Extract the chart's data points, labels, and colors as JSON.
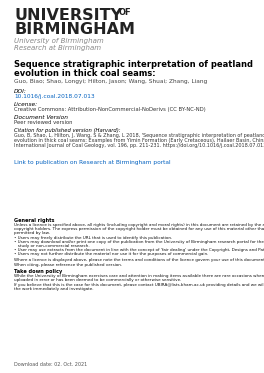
{
  "logo_university": "UNIVERSITY",
  "logo_of": "OF",
  "logo_birmingham": "BIRMINGHAM",
  "logo_sub1": "University of Birmingham",
  "logo_sub2": "Research at Birmingham",
  "title_line1": "Sequence stratigraphic interpretation of peatland",
  "title_line2": "evolution in thick coal seams:",
  "authors": "Guo, Biao; Shao, Longyi; Hilton, Jason; Wang, Shuai; Zhang, Liang",
  "doi_label": "DOI:",
  "doi_value": "10.1016/j.coal.2018.07.013",
  "license_label": "License:",
  "license_value": "Creative Commons: Attribution-NonCommercial-NoDerivs (CC BY-NC-ND)",
  "docver_label": "Document Version",
  "docver_value": "Peer reviewed version",
  "citation_label": "Citation for published version (Harvard):",
  "citation_line1": "Guo, B, Shao, L, Hilton, J, Wang, S & Zhang, L 2018, 'Sequence stratigraphic interpretation of peatland",
  "citation_line2": "evolution in thick coal seams: Examples from Yimin Formation (Early Cretaceous), Hailaer Basin, China',",
  "citation_line3": "International Journal of Coal Geology, vol. 196, pp. 211-231. https://doi.org/10.1016/j.coal.2018.07.013",
  "link_text": "Link to publication on Research at Birmingham portal",
  "gr_title": "General rights",
  "gr_line1": "Unless a licence is specified above, all rights (including copyright and moral rights) in this document are retained by the authors and/or the",
  "gr_line2": "copyright holders. The express permission of the copyright holder must be obtained for any use of this material other than for purposes",
  "gr_line3": "permitted by law.",
  "gr_b1": "• Users may freely distribute the URL that is used to identify this publication.",
  "gr_b2a": "• Users may download and/or print one copy of the publication from the University of Birmingham research portal for the purpose of private",
  "gr_b2b": "   study or non-commercial research.",
  "gr_b3": "• User may use extracts from the document in line with the concept of 'fair dealing' under the Copyright, Designs and Patents Act 1988 (?)",
  "gr_b4": "• Users may not further distribute the material nor use it for the purposes of commercial gain.",
  "where_lic": "Where a licence is displayed above, please note the terms and conditions of the licence govern your use of this document.",
  "when_cite": "When citing, please reference the published version.",
  "td_title": "Take down policy",
  "td_line1": "While the University of Birmingham exercises care and attention in making items available there are rare occasions when an item has been",
  "td_line2": "uploaded in error or has been deemed to be commercially or otherwise sensitive.",
  "if_believe1": "If you believe that this is the case for this document, please contact UBIRA@lists.bham.ac.uk providing details and we will remove access to",
  "if_believe2": "the work immediately and investigate.",
  "download_date": "Download date: 02. Oct. 2021",
  "link_color": "#0563c1",
  "doi_color": "#0563c1",
  "logo_color": "#222222",
  "gray_color": "#888888",
  "small_color": "#111111"
}
